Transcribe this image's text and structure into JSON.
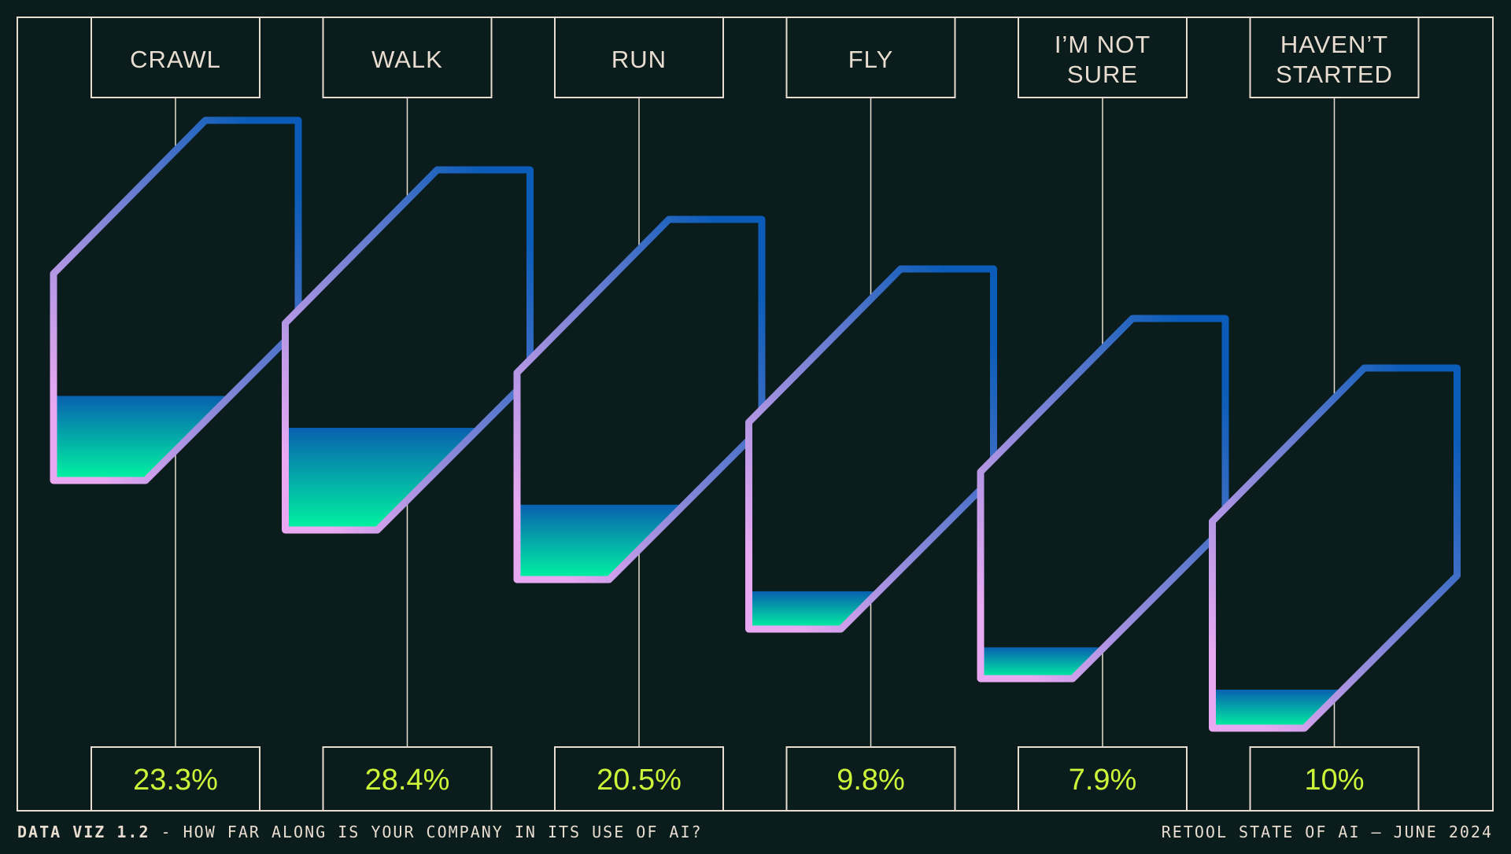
{
  "chart_data": {
    "type": "bar",
    "categories": [
      "CRAWL",
      "WALK",
      "RUN",
      "FLY",
      "I’M NOT SURE",
      "HAVEN’T STARTED"
    ],
    "category_lines": [
      [
        "CRAWL"
      ],
      [
        "WALK"
      ],
      [
        "RUN"
      ],
      [
        "FLY"
      ],
      [
        "I’M NOT",
        "SURE"
      ],
      [
        "HAVEN’T",
        "STARTED"
      ]
    ],
    "values": [
      23.3,
      28.4,
      20.5,
      9.8,
      7.9,
      10
    ],
    "value_labels": [
      "23.3%",
      "28.4%",
      "20.5%",
      "9.8%",
      "7.9%",
      "10%"
    ],
    "ylim": [
      0,
      100
    ],
    "unit": "%",
    "grid": false
  },
  "footer": {
    "left_bold": "DATA VIZ 1.2",
    "left_text": " - HOW FAR ALONG IS YOUR COMPANY IN ITS USE OF AI?",
    "right_text": "RETOOL STATE OF AI — JUNE 2024"
  },
  "colors": {
    "background": "#0a1c1b",
    "frame": "#e8ddd0",
    "label_text": "#e8ddd0",
    "value_text": "#ccf53a",
    "stroke_start": "#e9a9f2",
    "stroke_end": "#0a5cb8",
    "fill_top": "#0860b0",
    "fill_bottom": "#00f5a0"
  }
}
